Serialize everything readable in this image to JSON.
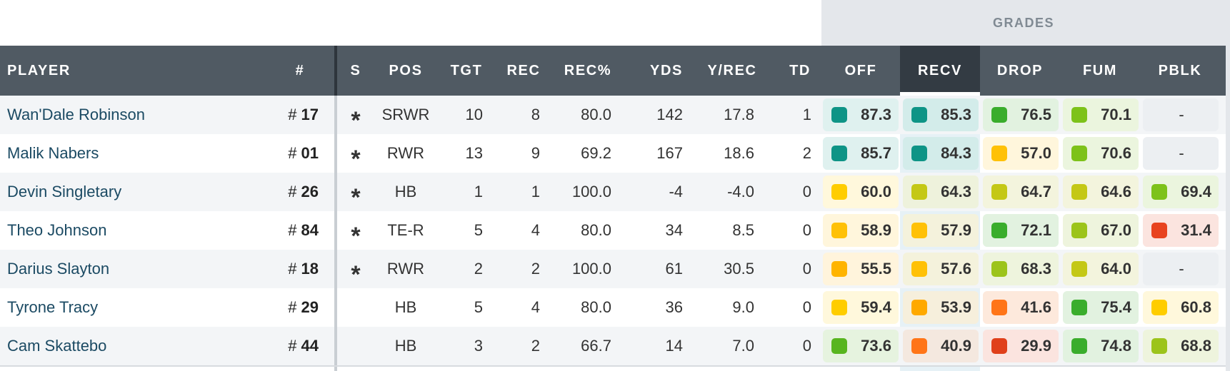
{
  "grades_label": "GRADES",
  "columns": {
    "player": "PLAYER",
    "num": "#",
    "s": "S",
    "pos": "POS",
    "tgt": "TGT",
    "rec": "REC",
    "rec_pct": "REC%",
    "yds": "YDS",
    "y_rec": "Y/REC",
    "td": "TD",
    "off": "OFF",
    "recv": "RECV",
    "drop": "DROP",
    "fum": "FUM",
    "pblk": "PBLK"
  },
  "active_column": "RECV",
  "rows": [
    {
      "player": "Wan'Dale Robinson",
      "hash": "#",
      "num": "17",
      "starter": "*",
      "pos": "SRWR",
      "tgt": "10",
      "rec": "8",
      "rec_pct": "80.0",
      "yds": "142",
      "y_rec": "17.8",
      "td": "1",
      "grades": {
        "off": {
          "v": "87.3",
          "c": "#0e9486",
          "bg": "#dff1ef"
        },
        "recv": {
          "v": "85.3",
          "c": "#0e9486",
          "bg": "#d3ecea"
        },
        "drop": {
          "v": "76.5",
          "c": "#3aad2c",
          "bg": "#e2f2e0"
        },
        "fum": {
          "v": "70.1",
          "c": "#7dc21a",
          "bg": "#ebf5de"
        },
        "pblk": {
          "v": "-",
          "c": "",
          "bg": "#eceff2"
        }
      }
    },
    {
      "player": "Malik Nabers",
      "hash": "#",
      "num": "01",
      "starter": "*",
      "pos": "RWR",
      "tgt": "13",
      "rec": "9",
      "rec_pct": "69.2",
      "yds": "167",
      "y_rec": "18.6",
      "td": "2",
      "grades": {
        "off": {
          "v": "85.7",
          "c": "#0e9486",
          "bg": "#dff1ef"
        },
        "recv": {
          "v": "84.3",
          "c": "#0e9486",
          "bg": "#d3ecea"
        },
        "drop": {
          "v": "57.0",
          "c": "#ffc107",
          "bg": "#fff6dc"
        },
        "fum": {
          "v": "70.6",
          "c": "#7dc21a",
          "bg": "#ebf5de"
        },
        "pblk": {
          "v": "-",
          "c": "",
          "bg": "#eceff2"
        }
      }
    },
    {
      "player": "Devin Singletary",
      "hash": "#",
      "num": "26",
      "starter": "*",
      "pos": "HB",
      "tgt": "1",
      "rec": "1",
      "rec_pct": "100.0",
      "yds": "-4",
      "y_rec": "-4.0",
      "td": "0",
      "grades": {
        "off": {
          "v": "60.0",
          "c": "#ffcd00",
          "bg": "#fff8dc"
        },
        "recv": {
          "v": "64.3",
          "c": "#c4c816",
          "bg": "#eef2dc"
        },
        "drop": {
          "v": "64.7",
          "c": "#c4c816",
          "bg": "#f3f4dd"
        },
        "fum": {
          "v": "64.6",
          "c": "#c4c816",
          "bg": "#f3f4dd"
        },
        "pblk": {
          "v": "69.4",
          "c": "#7dc21a",
          "bg": "#ebf5de"
        }
      }
    },
    {
      "player": "Theo Johnson",
      "hash": "#",
      "num": "84",
      "starter": "*",
      "pos": "TE-R",
      "tgt": "5",
      "rec": "4",
      "rec_pct": "80.0",
      "yds": "34",
      "y_rec": "8.5",
      "td": "0",
      "grades": {
        "off": {
          "v": "58.9",
          "c": "#ffc107",
          "bg": "#fff6dc"
        },
        "recv": {
          "v": "57.9",
          "c": "#ffc107",
          "bg": "#f4f2dc"
        },
        "drop": {
          "v": "72.1",
          "c": "#3aad2c",
          "bg": "#e2f2e0"
        },
        "fum": {
          "v": "67.0",
          "c": "#9cc41b",
          "bg": "#eef4dd"
        },
        "pblk": {
          "v": "31.4",
          "c": "#e8431f",
          "bg": "#fbe4df"
        }
      }
    },
    {
      "player": "Darius Slayton",
      "hash": "#",
      "num": "18",
      "starter": "*",
      "pos": "RWR",
      "tgt": "2",
      "rec": "2",
      "rec_pct": "100.0",
      "yds": "61",
      "y_rec": "30.5",
      "td": "0",
      "grades": {
        "off": {
          "v": "55.5",
          "c": "#ffb400",
          "bg": "#fff4dc"
        },
        "recv": {
          "v": "57.6",
          "c": "#ffc107",
          "bg": "#f4f2dc"
        },
        "drop": {
          "v": "68.3",
          "c": "#9cc41b",
          "bg": "#eef4dd"
        },
        "fum": {
          "v": "64.0",
          "c": "#c4c816",
          "bg": "#f3f4dd"
        },
        "pblk": {
          "v": "-",
          "c": "",
          "bg": "#eceff2"
        }
      }
    },
    {
      "player": "Tyrone Tracy",
      "hash": "#",
      "num": "29",
      "starter": "",
      "pos": "HB",
      "tgt": "5",
      "rec": "4",
      "rec_pct": "80.0",
      "yds": "36",
      "y_rec": "9.0",
      "td": "0",
      "grades": {
        "off": {
          "v": "59.4",
          "c": "#ffcd00",
          "bg": "#fff8dc"
        },
        "recv": {
          "v": "53.9",
          "c": "#ffa900",
          "bg": "#f6efdc"
        },
        "drop": {
          "v": "41.6",
          "c": "#ff7518",
          "bg": "#fde9dc"
        },
        "fum": {
          "v": "75.4",
          "c": "#3aad2c",
          "bg": "#e2f2e0"
        },
        "pblk": {
          "v": "60.8",
          "c": "#ffcd00",
          "bg": "#fff8dc"
        }
      }
    },
    {
      "player": "Cam Skattebo",
      "hash": "#",
      "num": "44",
      "starter": "",
      "pos": "HB",
      "tgt": "3",
      "rec": "2",
      "rec_pct": "66.7",
      "yds": "14",
      "y_rec": "7.0",
      "td": "0",
      "grades": {
        "off": {
          "v": "73.6",
          "c": "#58b51f",
          "bg": "#e6f3df"
        },
        "recv": {
          "v": "40.9",
          "c": "#ff7518",
          "bg": "#f4e8df"
        },
        "drop": {
          "v": "29.9",
          "c": "#e0401b",
          "bg": "#fbe4df"
        },
        "fum": {
          "v": "74.8",
          "c": "#3aad2c",
          "bg": "#e2f2e0"
        },
        "pblk": {
          "v": "68.8",
          "c": "#9cc41b",
          "bg": "#eef4dd"
        }
      }
    }
  ]
}
